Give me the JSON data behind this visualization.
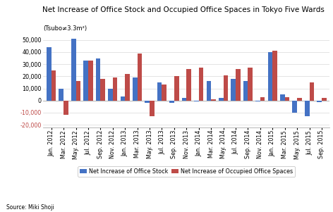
{
  "title": "Net Increase of Office Stock and Occupied Office Spaces in Tokyo Five Wards",
  "subtitle": "(Tsubo≠3.3m²)",
  "source": "Source: Miki Shoji",
  "legend_blue": "Net Increase of Office Stock",
  "legend_red": "Net Increase of Occupied Office Spaces",
  "categories": [
    "Jan. 2012",
    "Mar. 2012",
    "May. 2012",
    "Jul. 2012",
    "Sep. 2012",
    "Nov. 2012",
    "Jan. 2013",
    "Mar. 2013",
    "May. 2013",
    "Jul. 2013",
    "Sep. 2013",
    "Nov. 2013",
    "Jan. 2014",
    "Mar. 2014",
    "May. 2014",
    "Jul. 2014",
    "Sep. 2014",
    "Nov. 2014",
    "Jan. 2015",
    "Mar. 2015",
    "May. 2015",
    "Jul. 2015",
    "Sep. 2015"
  ],
  "stock_values": [
    44000,
    10000,
    51000,
    33000,
    35000,
    10000,
    3500,
    19000,
    -2000,
    15000,
    -2000,
    2000,
    -1000,
    16000,
    2000,
    18000,
    16000,
    -500,
    40000,
    5000,
    -10000,
    -13000,
    -1500
  ],
  "occupied_values": [
    25000,
    -12000,
    16000,
    33000,
    18000,
    19000,
    22000,
    39000,
    -13000,
    13000,
    20000,
    26000,
    27000,
    1000,
    21000,
    26000,
    27000,
    3000,
    41000,
    3000,
    2000,
    15000,
    2000
  ],
  "ylim": [
    -22000,
    55000
  ],
  "yticks": [
    -20000,
    -10000,
    0,
    10000,
    20000,
    30000,
    40000,
    50000
  ],
  "bar_color_blue": "#4472C4",
  "bar_color_red": "#BE4B48",
  "grid_color": "#D9D9D9",
  "title_fontsize": 7.5,
  "subtitle_fontsize": 6.0,
  "tick_fontsize": 5.8,
  "legend_fontsize": 5.8,
  "source_fontsize": 5.5
}
